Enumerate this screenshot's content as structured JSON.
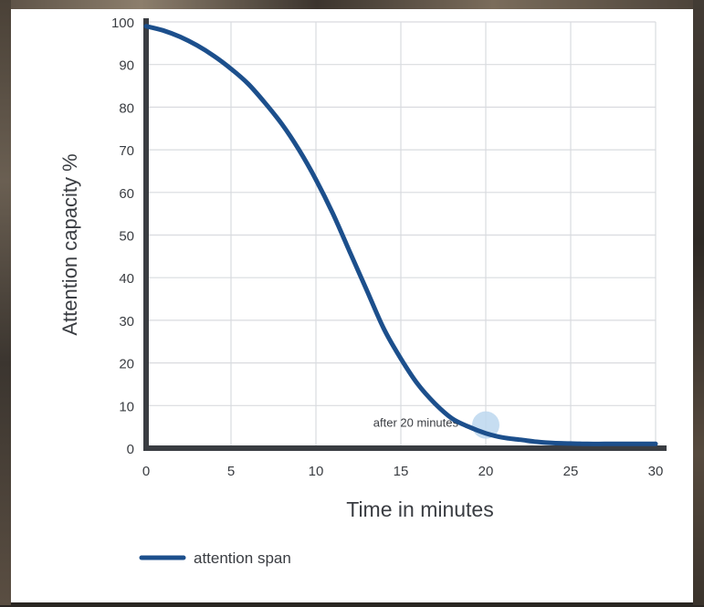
{
  "chart_data": {
    "type": "line",
    "title": "",
    "xlabel": "Time in minutes",
    "ylabel": "Attention capacity %",
    "xlim": [
      0,
      30
    ],
    "ylim": [
      0,
      100
    ],
    "x_ticks": [
      "0",
      "5",
      "10",
      "15",
      "20",
      "25",
      "30"
    ],
    "y_ticks": [
      "0",
      "10",
      "20",
      "30",
      "40",
      "50",
      "60",
      "70",
      "80",
      "90",
      "100"
    ],
    "grid": true,
    "legend_position": "bottom-left",
    "series": [
      {
        "name": "attention span",
        "color": "#1c4f8c",
        "x": [
          0,
          1,
          2,
          3,
          4,
          5,
          6,
          7,
          8,
          9,
          10,
          11,
          12,
          13,
          14,
          15,
          16,
          17,
          18,
          19,
          20,
          21,
          22,
          23,
          24,
          25,
          26,
          27,
          28,
          29,
          30
        ],
        "y": [
          99,
          98,
          96.5,
          94.5,
          92,
          89,
          85.5,
          81,
          76,
          70,
          63,
          55,
          46,
          37,
          28,
          21,
          15,
          10.5,
          7,
          5,
          3.5,
          2.5,
          2,
          1.5,
          1.2,
          1.1,
          1,
          1,
          1,
          1,
          1
        ]
      }
    ],
    "annotations": [
      {
        "text": "after 20 minutes",
        "x": 20,
        "y": 5,
        "highlight_color": "#bcd7ee"
      }
    ]
  },
  "colors": {
    "axis": "#3a3d42",
    "grid": "#d9dbdf",
    "text": "#3a3d42",
    "panel": "#ffffff"
  }
}
